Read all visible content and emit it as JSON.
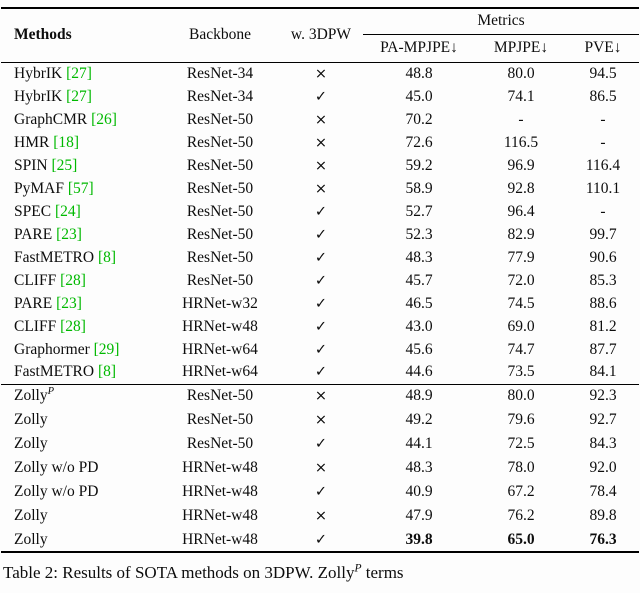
{
  "header": {
    "methods": "Methods",
    "backbone": "Backbone",
    "w_3dpw": "w. 3DPW",
    "metrics_group": "Metrics",
    "pa_mpjpe": "PA-MPJPE↓",
    "mpjpe": "MPJPE↓",
    "pve": "PVE↓"
  },
  "colors": {
    "citation_green": "#00b900"
  },
  "rows_top": [
    {
      "method": "HybrIK",
      "cite": "[27]",
      "backbone": "ResNet-34",
      "w_3dpw": "×",
      "values": [
        "48.8",
        "80.0",
        "94.5"
      ]
    },
    {
      "method": "HybrIK",
      "cite": "[27]",
      "backbone": "ResNet-34",
      "w_3dpw": "✓",
      "values": [
        "45.0",
        "74.1",
        "86.5"
      ]
    },
    {
      "method": "GraphCMR",
      "cite": "[26]",
      "backbone": "ResNet-50",
      "w_3dpw": "×",
      "values": [
        "70.2",
        "-",
        "-"
      ]
    },
    {
      "method": "HMR",
      "cite": "[18]",
      "backbone": "ResNet-50",
      "w_3dpw": "×",
      "values": [
        "72.6",
        "116.5",
        "-"
      ]
    },
    {
      "method": "SPIN",
      "cite": "[25]",
      "backbone": "ResNet-50",
      "w_3dpw": "×",
      "values": [
        "59.2",
        "96.9",
        "116.4"
      ]
    },
    {
      "method": "PyMAF",
      "cite": "[57]",
      "backbone": "ResNet-50",
      "w_3dpw": "×",
      "values": [
        "58.9",
        "92.8",
        "110.1"
      ]
    },
    {
      "method": "SPEC",
      "cite": "[24]",
      "backbone": "ResNet-50",
      "w_3dpw": "✓",
      "values": [
        "52.7",
        "96.4",
        "-"
      ]
    },
    {
      "method": "PARE",
      "cite": "[23]",
      "backbone": "ResNet-50",
      "w_3dpw": "✓",
      "values": [
        "52.3",
        "82.9",
        "99.7"
      ]
    },
    {
      "method": "FastMETRO",
      "cite": "[8]",
      "backbone": "ResNet-50",
      "w_3dpw": "✓",
      "values": [
        "48.3",
        "77.9",
        "90.6"
      ]
    },
    {
      "method": "CLIFF",
      "cite": "[28]",
      "backbone": "ResNet-50",
      "w_3dpw": "✓",
      "values": [
        "45.7",
        "72.0",
        "85.3"
      ]
    },
    {
      "method": "PARE",
      "cite": "[23]",
      "backbone": "HRNet-w32",
      "w_3dpw": "✓",
      "values": [
        "46.5",
        "74.5",
        "88.6"
      ]
    },
    {
      "method": "CLIFF",
      "cite": "[28]",
      "backbone": "HRNet-w48",
      "w_3dpw": "✓",
      "values": [
        "43.0",
        "69.0",
        "81.2"
      ]
    },
    {
      "method": "Graphormer",
      "cite": "[29]",
      "backbone": "HRNet-w64",
      "w_3dpw": "✓",
      "values": [
        "45.6",
        "74.7",
        "87.7"
      ]
    },
    {
      "method": "FastMETRO",
      "cite": "[8]",
      "backbone": "HRNet-w64",
      "w_3dpw": "✓",
      "values": [
        "44.6",
        "73.5",
        "84.1"
      ]
    }
  ],
  "rows_bottom": [
    {
      "method": "Zolly",
      "sup": "P",
      "backbone": "ResNet-50",
      "w_3dpw": "×",
      "values": [
        "48.9",
        "80.0",
        "92.3"
      ]
    },
    {
      "method": "Zolly",
      "backbone": "ResNet-50",
      "w_3dpw": "×",
      "values": [
        "49.2",
        "79.6",
        "92.7"
      ]
    },
    {
      "method": "Zolly",
      "backbone": "ResNet-50",
      "w_3dpw": "✓",
      "values": [
        "44.1",
        "72.5",
        "84.3"
      ]
    },
    {
      "method": "Zolly w/o PD",
      "backbone": "HRNet-w48",
      "w_3dpw": "×",
      "values": [
        "48.3",
        "78.0",
        "92.0"
      ]
    },
    {
      "method": "Zolly w/o PD",
      "backbone": "HRNet-w48",
      "w_3dpw": "✓",
      "values": [
        "40.9",
        "67.2",
        "78.4"
      ]
    },
    {
      "method": "Zolly",
      "backbone": "HRNet-w48",
      "w_3dpw": "×",
      "values": [
        "47.9",
        "76.2",
        "89.8"
      ]
    },
    {
      "method": "Zolly",
      "backbone": "HRNet-w48",
      "w_3dpw": "✓",
      "values": [
        "39.8",
        "65.0",
        "76.3"
      ],
      "bold": true
    }
  ],
  "caption": {
    "text": "Table 2: Results of SOTA methods on 3DPW. Zolly",
    "sup": "P",
    "tail": "terms"
  }
}
